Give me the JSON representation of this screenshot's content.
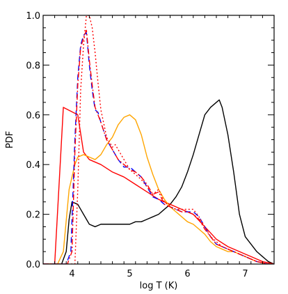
{
  "chart_data": {
    "type": "line",
    "title": "",
    "xlabel": "log T (K)",
    "ylabel": "PDF",
    "xlim": [
      3.5,
      7.5
    ],
    "ylim": [
      0.0,
      1.0
    ],
    "xticks": [
      4,
      5,
      6,
      7
    ],
    "xtick_labels": [
      "4",
      "5",
      "6",
      "7"
    ],
    "yticks": [
      0.0,
      0.2,
      0.4,
      0.6,
      0.8,
      1.0
    ],
    "ytick_labels": [
      "0.0",
      "0.2",
      "0.4",
      "0.6",
      "0.8",
      "1.0"
    ],
    "grid": false,
    "legend": "none",
    "series": [
      {
        "color": "#000000",
        "style": "solid",
        "x": [
          3.5,
          3.82,
          3.9,
          3.95,
          4.0,
          4.1,
          4.2,
          4.3,
          4.4,
          4.5,
          4.6,
          4.7,
          4.8,
          4.9,
          5.0,
          5.1,
          5.2,
          5.3,
          5.4,
          5.5,
          5.6,
          5.7,
          5.8,
          5.9,
          6.0,
          6.1,
          6.2,
          6.3,
          6.4,
          6.5,
          6.55,
          6.6,
          6.7,
          6.8,
          6.9,
          7.0,
          7.1,
          7.2,
          7.3,
          7.4,
          7.5
        ],
        "y": [
          0.0,
          0.0,
          0.05,
          0.18,
          0.25,
          0.24,
          0.2,
          0.16,
          0.15,
          0.16,
          0.16,
          0.16,
          0.16,
          0.16,
          0.16,
          0.17,
          0.17,
          0.18,
          0.19,
          0.2,
          0.22,
          0.24,
          0.27,
          0.31,
          0.37,
          0.44,
          0.52,
          0.6,
          0.63,
          0.65,
          0.66,
          0.63,
          0.52,
          0.37,
          0.2,
          0.11,
          0.08,
          0.05,
          0.03,
          0.01,
          0.0
        ]
      },
      {
        "color": "#ff0000",
        "style": "solid",
        "x": [
          3.5,
          3.6,
          3.7,
          3.85,
          4.1,
          4.2,
          4.3,
          4.5,
          4.7,
          4.9,
          5.1,
          5.3,
          5.5,
          5.7,
          5.9,
          6.1,
          6.3,
          6.5,
          6.7,
          6.9,
          7.0,
          7.1,
          7.2,
          7.3,
          7.4,
          7.5
        ],
        "y": [
          0.0,
          0.0,
          0.0,
          0.63,
          0.6,
          0.45,
          0.42,
          0.4,
          0.37,
          0.35,
          0.32,
          0.29,
          0.26,
          0.24,
          0.22,
          0.2,
          0.15,
          0.1,
          0.07,
          0.05,
          0.04,
          0.03,
          0.02,
          0.01,
          0.005,
          0.0
        ]
      },
      {
        "color": "#ffa500",
        "style": "solid",
        "x": [
          3.5,
          3.75,
          3.85,
          3.95,
          4.05,
          4.1,
          4.2,
          4.3,
          4.4,
          4.5,
          4.6,
          4.7,
          4.8,
          4.9,
          5.0,
          5.1,
          5.2,
          5.3,
          5.4,
          5.5,
          5.6,
          5.7,
          5.8,
          5.9,
          6.0,
          6.1,
          6.2,
          6.3,
          6.4,
          6.5,
          6.6,
          6.7,
          6.8,
          6.9,
          7.0,
          7.1,
          7.2,
          7.3,
          7.4,
          7.5
        ],
        "y": [
          0.0,
          0.0,
          0.05,
          0.3,
          0.4,
          0.43,
          0.44,
          0.43,
          0.42,
          0.44,
          0.48,
          0.51,
          0.56,
          0.59,
          0.6,
          0.58,
          0.52,
          0.43,
          0.36,
          0.3,
          0.26,
          0.23,
          0.21,
          0.19,
          0.17,
          0.16,
          0.14,
          0.12,
          0.09,
          0.07,
          0.06,
          0.05,
          0.05,
          0.04,
          0.03,
          0.02,
          0.01,
          0.005,
          0.0,
          0.0
        ]
      },
      {
        "color": "#0000ff",
        "style": "dashed",
        "x": [
          3.5,
          3.9,
          3.98,
          4.05,
          4.1,
          4.15,
          4.2,
          4.25,
          4.3,
          4.35,
          4.4,
          4.45,
          4.5,
          4.6,
          4.7,
          4.8,
          4.9,
          5.0,
          5.1,
          5.2,
          5.3,
          5.4,
          5.5,
          5.6,
          5.7,
          5.8,
          5.9,
          6.0,
          6.1,
          6.2,
          6.3,
          6.4,
          6.5,
          6.6,
          6.7,
          6.8,
          6.9,
          7.0,
          7.1,
          7.2,
          7.3,
          7.4,
          7.5
        ],
        "y": [
          0.0,
          0.0,
          0.05,
          0.5,
          0.75,
          0.88,
          0.92,
          0.93,
          0.8,
          0.7,
          0.62,
          0.61,
          0.57,
          0.5,
          0.46,
          0.42,
          0.39,
          0.39,
          0.37,
          0.35,
          0.31,
          0.27,
          0.26,
          0.24,
          0.23,
          0.22,
          0.21,
          0.21,
          0.21,
          0.19,
          0.15,
          0.11,
          0.08,
          0.07,
          0.06,
          0.05,
          0.04,
          0.03,
          0.02,
          0.01,
          0.005,
          0.0,
          0.0
        ]
      },
      {
        "color": "#ff0000",
        "style": "dashdot",
        "x": [
          3.5,
          3.92,
          4.0,
          4.05,
          4.1,
          4.15,
          4.2,
          4.25,
          4.3,
          4.35,
          4.4,
          4.45,
          4.5,
          4.6,
          4.7,
          4.8,
          4.9,
          5.0,
          5.1,
          5.2,
          5.3,
          5.4,
          5.5,
          5.6,
          5.7,
          5.8,
          5.9,
          6.0,
          6.1,
          6.2,
          6.3,
          6.4,
          6.5,
          6.6,
          6.7,
          6.8,
          6.9,
          7.0,
          7.1,
          7.2,
          7.3,
          7.4,
          7.5
        ],
        "y": [
          0.0,
          0.0,
          0.05,
          0.45,
          0.72,
          0.87,
          0.91,
          0.94,
          0.82,
          0.72,
          0.63,
          0.6,
          0.57,
          0.5,
          0.46,
          0.42,
          0.4,
          0.38,
          0.37,
          0.35,
          0.32,
          0.28,
          0.29,
          0.24,
          0.23,
          0.22,
          0.21,
          0.21,
          0.2,
          0.18,
          0.14,
          0.11,
          0.08,
          0.07,
          0.06,
          0.05,
          0.04,
          0.03,
          0.02,
          0.01,
          0.005,
          0.0,
          0.0
        ]
      },
      {
        "color": "#ff0000",
        "style": "dotted",
        "x": [
          3.5,
          4.05,
          4.1,
          4.15,
          4.2,
          4.25,
          4.3,
          4.35,
          4.4,
          4.45,
          4.5,
          4.6,
          4.7,
          4.75,
          4.8,
          4.9,
          5.0,
          5.1,
          5.2,
          5.3,
          5.4,
          5.5,
          5.6,
          5.7,
          5.8,
          5.9,
          6.0,
          6.1,
          6.2,
          6.3,
          6.4,
          6.5,
          6.6,
          6.7,
          6.8,
          6.9,
          7.0,
          7.1,
          7.2,
          7.3,
          7.4,
          7.5
        ],
        "y": [
          0.0,
          0.0,
          0.3,
          0.7,
          0.88,
          1.0,
          1.0,
          0.95,
          0.85,
          0.73,
          0.62,
          0.51,
          0.47,
          0.48,
          0.46,
          0.42,
          0.38,
          0.36,
          0.34,
          0.31,
          0.28,
          0.3,
          0.25,
          0.23,
          0.22,
          0.22,
          0.22,
          0.22,
          0.19,
          0.15,
          0.11,
          0.09,
          0.07,
          0.06,
          0.05,
          0.04,
          0.03,
          0.02,
          0.01,
          0.005,
          0.0,
          0.0
        ]
      }
    ]
  }
}
